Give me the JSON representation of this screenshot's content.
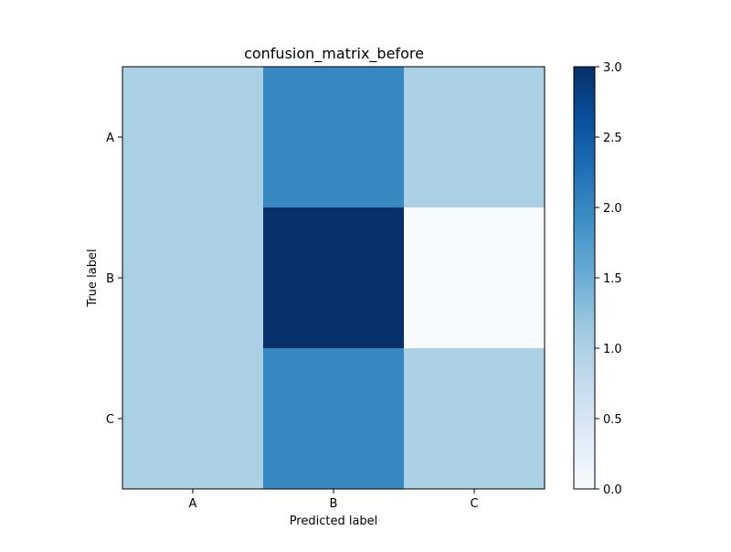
{
  "chart_data": {
    "type": "heatmap",
    "title": "confusion_matrix_before",
    "xlabel": "Predicted label",
    "ylabel": "True label",
    "x_categories": [
      "A",
      "B",
      "C"
    ],
    "y_categories": [
      "A",
      "B",
      "C"
    ],
    "values": [
      [
        1,
        2,
        1
      ],
      [
        1,
        3,
        0
      ],
      [
        1,
        2,
        1
      ]
    ],
    "colormap": "Blues",
    "colorbar": {
      "range": [
        0,
        3
      ],
      "ticks": [
        0.0,
        0.5,
        1.0,
        1.5,
        2.0,
        2.5,
        3.0
      ],
      "tick_labels": [
        "0.0",
        "0.5",
        "1.0",
        "1.5",
        "2.0",
        "2.5",
        "3.0"
      ]
    },
    "grid": false
  }
}
